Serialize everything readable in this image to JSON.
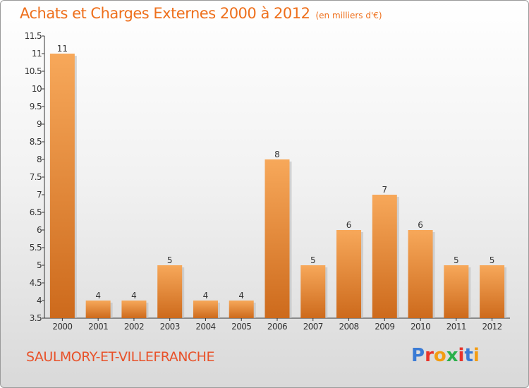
{
  "header": {
    "title": "Achats et Charges Externes 2000 à 2012",
    "unit": "(en milliers d'€)"
  },
  "footer": {
    "commune": "SAULMORY-ET-VILLEFRANCHE",
    "logo_letters": [
      "P",
      "r",
      "o",
      "x",
      "i",
      "t",
      "i"
    ],
    "logo_colors": [
      "#3a7bd5",
      "#e8332a",
      "#f39c12",
      "#2ab04a",
      "#e8332a",
      "#3a7bd5",
      "#f39c12"
    ]
  },
  "colors": {
    "accent": "#ee6f1b",
    "bar_top": "#f7a85a",
    "bar_bottom": "#cd6a1c"
  },
  "chart_data": {
    "type": "bar",
    "title": "Achats et Charges Externes 2000 à 2012",
    "subtitle": "(en milliers d'€)",
    "xlabel": "",
    "ylabel": "",
    "categories": [
      "2000",
      "2001",
      "2002",
      "2003",
      "2004",
      "2005",
      "2006",
      "2007",
      "2008",
      "2009",
      "2010",
      "2011",
      "2012"
    ],
    "values": [
      11,
      4,
      4,
      5,
      4,
      4,
      8,
      5,
      6,
      7,
      6,
      5,
      5
    ],
    "value_labels": [
      "11",
      "4",
      "4",
      "5",
      "4",
      "4",
      "8",
      "5",
      "6",
      "7",
      "6",
      "5",
      "5"
    ],
    "ylim": [
      3.5,
      11.5
    ],
    "yticks": [
      "3.5",
      "4",
      "4.5",
      "5",
      "5.5",
      "6",
      "6.5",
      "7",
      "7.5",
      "8",
      "8.5",
      "9",
      "9.5",
      "10",
      "10.5",
      "11",
      "11.5"
    ],
    "grid": false
  }
}
